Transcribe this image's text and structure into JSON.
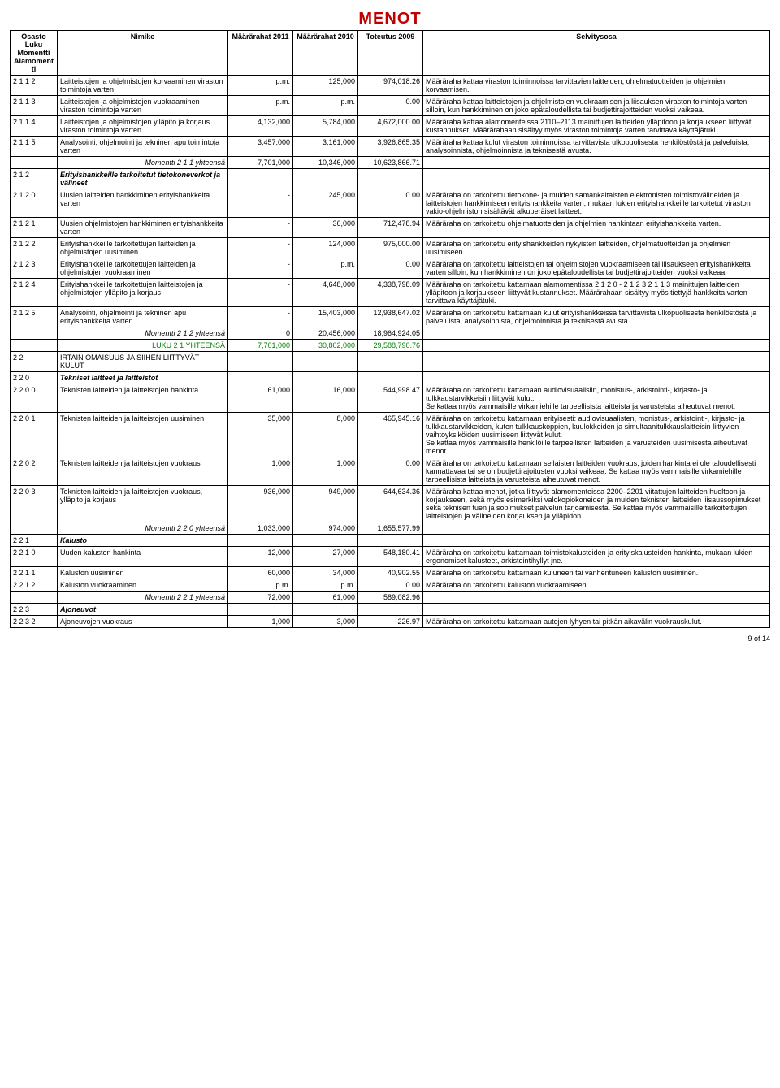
{
  "title": "MENOT",
  "header": {
    "codeLines": [
      "Osasto",
      "Luku",
      "Momentti",
      "Alamomentti"
    ],
    "name": "Nimike",
    "c2011": "Määrärahat 2011",
    "c2010": "Määrärahat 2010",
    "c2009": "Toteutus 2009",
    "desc": "Selvitysosa"
  },
  "rows": [
    {
      "code": "2 1 1 2",
      "name": "Laitteistojen ja ohjelmistojen korvaaminen viraston toimintoja varten",
      "c2011": "p.m.",
      "c2010": "125,000",
      "c2009": "974,018.26",
      "desc": "Määräraha kattaa viraston toiminnoissa tarvittavien laitteiden, ohjelmatuotteiden ja ohjelmien korvaamisen."
    },
    {
      "code": "2 1 1 3",
      "name": "Laitteistojen ja ohjelmistojen vuokraaminen viraston toimintoja varten",
      "c2011": "p.m.",
      "c2010": "p.m.",
      "c2009": "0.00",
      "desc": "Määräraha kattaa laitteistojen ja ohjelmistojen vuokraamisen ja liisauksen viraston toimintoja varten silloin, kun hankkiminen on joko epätaloudellista tai budjettirajoitteiden vuoksi vaikeaa."
    },
    {
      "code": "2 1 1 4",
      "name": "Laitteistojen ja ohjelmistojen ylläpito ja korjaus viraston toimintoja varten",
      "c2011": "4,132,000",
      "c2010": "5,784,000",
      "c2009": "4,672,000.00",
      "desc": "Määräraha kattaa alamomenteissa 2110–2113 mainittujen laitteiden ylläpitoon ja korjaukseen liittyvät kustannukset. Määrärahaan sisältyy myös viraston toimintoja varten tarvittava käyttäjätuki."
    },
    {
      "code": "2 1 1 5",
      "name": "Analysointi, ohjelmointi ja tekninen apu toimintoja varten",
      "c2011": "3,457,000",
      "c2010": "3,161,000",
      "c2009": "3,926,865.35",
      "desc": "Määräraha kattaa kulut viraston toiminnoissa tarvittavista ulkopuolisesta henkilöstöstä ja palveluista, analysoinnista, ohjelmoinnista ja teknisestä avusta."
    },
    {
      "type": "subtotal",
      "name": "Momentti 2 1 1 yhteensä",
      "c2011": "7,701,000",
      "c2010": "10,346,000",
      "c2009": "10,623,866.71",
      "desc": ""
    },
    {
      "code": "2 1 2",
      "name": "Erityishankkeille tarkoitetut tietokoneverkot ja välineet",
      "nameClass": "bold-italic"
    },
    {
      "code": "2 1 2 0",
      "name": "Uusien laitteiden hankkiminen erityishankkeita varten",
      "c2011": "-",
      "c2010": "245,000",
      "c2009": "0.00",
      "desc": "Määräraha on tarkoitettu tietokone- ja muiden samankaltaisten elektronisten toimistovälineiden ja laitteistojen hankkimiseen erityishankkeita varten, mukaan lukien erityishankkeille tarkoitetut viraston vakio-ohjelmiston sisältävät alkuperäiset laitteet."
    },
    {
      "code": "2 1 2 1",
      "name": "Uusien ohjelmistojen hankkiminen erityishankkeita varten",
      "c2011": "-",
      "c2010": "36,000",
      "c2009": "712,478.94",
      "desc": "Määräraha on tarkoitettu ohjelmatuotteiden ja ohjelmien hankintaan erityishankkeita varten."
    },
    {
      "code": "2 1 2 2",
      "name": "Erityishankkeille tarkoitettujen laitteiden ja ohjelmistojen uusiminen",
      "c2011": "-",
      "c2010": "124,000",
      "c2009": "975,000.00",
      "desc": "Määräraha on tarkoitettu erityishankkeiden nykyisten laitteiden, ohjelmatuotteiden ja ohjelmien uusimiseen."
    },
    {
      "code": "2 1 2 3",
      "name": "Erityishankkeille tarkoitettujen laitteiden ja ohjelmistojen vuokraaminen",
      "c2011": "-",
      "c2010": "p.m.",
      "c2009": "0.00",
      "desc": "Määräraha on tarkoitettu laitteistojen tai ohjelmistojen vuokraamiseen tai liisaukseen erityishankkeita varten silloin, kun hankkiminen on joko epätaloudellista tai budjettirajoitteiden vuoksi vaikeaa."
    },
    {
      "code": "2 1 2 4",
      "name": "Erityishankkeille tarkoitettujen laitteistojen ja ohjelmistojen ylläpito ja korjaus",
      "c2011": "-",
      "c2010": "4,648,000",
      "c2009": "4,338,798.09",
      "desc": "Määräraha on tarkoitettu kattamaan alamomentissa 2 1 2 0 - 2 1 2 3 2 1 1 3 mainittujen laitteiden ylläpitoon ja korjaukseen liittyvät kustannukset. Määrärahaan sisältyy myös tiettyjä hankkeita varten tarvittava käyttäjätuki."
    },
    {
      "code": "2 1 2 5",
      "name": "Analysointi, ohjelmointi ja tekninen apu erityishankkeita varten",
      "c2011": "-",
      "c2010": "15,403,000",
      "c2009": "12,938,647.02",
      "desc": "Määräraha on tarkoitettu kattamaan kulut erityishankkeissa tarvittavista ulkopuolisesta henkilöstöstä ja palveluista, analysoinnista, ohjelmoinnista ja teknisestä avusta."
    },
    {
      "type": "subtotal",
      "name": "Momentti 2 1 2 yhteensä",
      "c2011": "0",
      "c2010": "20,456,000",
      "c2009": "18,964,924.05",
      "desc": ""
    },
    {
      "type": "greentotal",
      "name": "LUKU 2 1 YHTEENSÄ",
      "c2011": "7,701,000",
      "c2010": "30,802,000",
      "c2009": "29,588,790.76",
      "desc": ""
    },
    {
      "code": "2 2",
      "name": "IRTAIN OMAISUUS JA SIIHEN LIITTYVÄT KULUT"
    },
    {
      "code": "2 2 0",
      "name": "Tekniset laitteet ja laitteistot",
      "nameClass": "bold-italic"
    },
    {
      "code": "2 2 0 0",
      "name": "Teknisten laitteiden ja laitteistojen hankinta",
      "c2011": "61,000",
      "c2010": "16,000",
      "c2009": "544,998.47",
      "desc": "Määräraha on tarkoitettu kattamaan audiovisuaalisiin, monistus-, arkistointi-, kirjasto- ja tulkkaustarvikkeisiin liittyvät kulut.\nSe kattaa myös vammaisille virkamiehille tarpeellisista laitteista ja varusteista aiheutuvat menot."
    },
    {
      "code": "2 2 0 1",
      "name": "Teknisten laitteiden ja laitteistojen uusiminen",
      "c2011": "35,000",
      "c2010": "8,000",
      "c2009": "465,945.16",
      "desc": "Määräraha on tarkoitettu kattamaan erityisesti: audiovisuaalisten, monistus-, arkistointi-, kirjasto- ja tulkkaustarvikkeiden, kuten tulkkauskoppien, kuulokkeiden ja simultaanitulkkauslaitteisin liittyvien vaihtoyksiköiden uusimiseen liittyvät kulut.\nSe kattaa myös vammaisille henkilöille tarpeellisten laitteiden ja varusteiden uusimisesta aiheutuvat menot."
    },
    {
      "code": "2 2 0 2",
      "name": "Teknisten laitteiden ja laitteistojen vuokraus",
      "c2011": "1,000",
      "c2010": "1,000",
      "c2009": "0.00",
      "desc": "Määräraha on tarkoitettu kattamaan sellaisten laitteiden vuokraus, joiden hankinta ei ole taloudellisesti kannattavaa tai se on budjettirajoitusten vuoksi vaikeaa. Se kattaa myös vammaisille virkamiehille tarpeellisista laitteista ja varusteista aiheutuvat menot."
    },
    {
      "code": "2 2 0 3",
      "name": "Teknisten laitteiden ja laitteistojen vuokraus, ylläpito ja korjaus",
      "c2011": "936,000",
      "c2010": "949,000",
      "c2009": "644,634.36",
      "desc": "Määräraha kattaa menot, jotka liittyvät alamomenteissa 2200–2201 viitattujen laitteiden huoltoon ja korjaukseen, sekä myös esimerkiksi valokopiokoneiden ja muiden teknisten laitteiden liisaussopimukset sekä teknisen tuen ja sopimukset palvelun tarjoamisesta. Se kattaa myös vammaisille tarkoitettujen laitteistojen ja välineiden korjauksen ja ylläpidon."
    },
    {
      "type": "subtotal",
      "name": "Momentti 2 2 0 yhteensä",
      "c2011": "1,033,000",
      "c2010": "974,000",
      "c2009": "1,655,577.99",
      "desc": ""
    },
    {
      "code": "2 2 1",
      "name": "Kalusto",
      "nameClass": "bold-italic"
    },
    {
      "code": "2 2 1 0",
      "name": "Uuden kaluston hankinta",
      "c2011": "12,000",
      "c2010": "27,000",
      "c2009": "548,180.41",
      "desc": "Määräraha on tarkoitettu kattamaan toimistokalusteiden ja erityiskalusteiden hankinta, mukaan lukien ergonomiset kalusteet, arkistointihyllyt jne."
    },
    {
      "code": "2 2 1 1",
      "name": "Kaluston uusiminen",
      "c2011": "60,000",
      "c2010": "34,000",
      "c2009": "40,902.55",
      "desc": "Määräraha on tarkoitettu kattamaan kuluneen tai vanhentuneen kaluston uusiminen."
    },
    {
      "code": "2 2 1 2",
      "name": "Kaluston vuokraaminen",
      "c2011": "p.m.",
      "c2010": "p.m.",
      "c2009": "0.00",
      "desc": "Määräraha on tarkoitettu kaluston vuokraamiseen."
    },
    {
      "type": "subtotal",
      "name": "Momentti 2 2 1 yhteensä",
      "c2011": "72,000",
      "c2010": "61,000",
      "c2009": "589,082.96",
      "desc": ""
    },
    {
      "code": "2 2 3",
      "name": "Ajoneuvot",
      "nameClass": "bold-italic"
    },
    {
      "code": "2 2 3 2",
      "name": "Ajoneuvojen vuokraus",
      "c2011": "1,000",
      "c2010": "3,000",
      "c2009": "226.97",
      "desc": "Määräraha on tarkoitettu kattamaan autojen lyhyen tai pitkän aikavälin vuokrauskulut."
    }
  ],
  "footer": "9 of 14"
}
